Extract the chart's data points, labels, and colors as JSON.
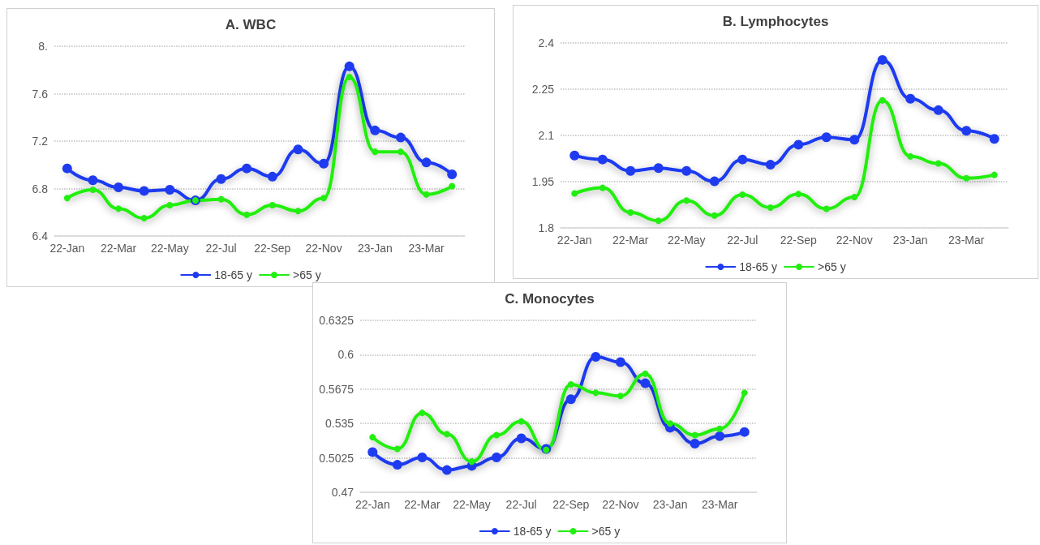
{
  "chart_data": [
    {
      "type": "line",
      "title": "A. WBC",
      "categories": [
        "22-Jan",
        null,
        "22-Mar",
        null,
        "22-May",
        null,
        "22-Jul",
        null,
        "22-Sep",
        null,
        "22-Nov",
        null,
        "23-Jan",
        null,
        "23-Mar",
        null
      ],
      "series": [
        {
          "name": "18-65 y",
          "color": "#1f3bf0",
          "values": [
            6.97,
            6.87,
            6.81,
            6.78,
            6.79,
            6.7,
            6.88,
            6.97,
            6.9,
            7.13,
            7.01,
            7.83,
            7.29,
            7.23,
            7.02,
            6.92
          ]
        },
        {
          "name": ">65 y",
          "color": "#22ee11",
          "values": [
            6.72,
            6.79,
            6.63,
            6.55,
            6.66,
            6.7,
            6.71,
            6.58,
            6.66,
            6.61,
            6.72,
            7.74,
            7.11,
            7.11,
            6.75,
            6.82
          ]
        }
      ],
      "ylim": [
        6.4,
        8
      ],
      "yticks": [
        6.4,
        6.8,
        7.2,
        7.6,
        {
          "value": 8,
          "label": "8."
        }
      ],
      "grid": "y",
      "legend": "bottom",
      "marker": "circle",
      "line_style": "solid"
    },
    {
      "type": "line",
      "title": "B. Lymphocytes",
      "categories": [
        "22-Jan",
        null,
        "22-Mar",
        null,
        "22-May",
        null,
        "22-Jul",
        null,
        "22-Sep",
        null,
        "22-Nov",
        null,
        "23-Jan",
        null,
        "23-Mar",
        null
      ],
      "series": [
        {
          "name": "18-65 y",
          "color": "#1f3bf0",
          "values": [
            2.035,
            2.022,
            1.985,
            1.994,
            1.985,
            1.951,
            2.022,
            2.005,
            2.07,
            2.094,
            2.086,
            2.345,
            2.219,
            2.182,
            2.115,
            2.089
          ]
        },
        {
          "name": ">65 y",
          "color": "#22ee11",
          "values": [
            1.912,
            1.93,
            1.85,
            1.823,
            1.889,
            1.84,
            1.908,
            1.866,
            1.91,
            1.862,
            1.9,
            2.214,
            2.032,
            2.009,
            1.961,
            1.972
          ]
        }
      ],
      "ylim": [
        1.8,
        2.4
      ],
      "yticks": [
        1.8,
        1.95,
        2.1,
        2.25,
        2.4
      ],
      "grid": "y",
      "legend": "bottom",
      "marker": "circle",
      "line_style": "solid"
    },
    {
      "type": "line",
      "title": "C. Monocytes",
      "categories": [
        "22-Jan",
        null,
        "22-Mar",
        null,
        "22-May",
        null,
        "22-Jul",
        null,
        "22-Sep",
        null,
        "22-Nov",
        null,
        "23-Jan",
        null,
        "23-Mar",
        null
      ],
      "series": [
        {
          "name": "18-65 y",
          "color": "#1f3bf0",
          "values": [
            0.508,
            0.496,
            0.503,
            0.491,
            0.495,
            0.503,
            0.521,
            0.511,
            0.558,
            0.598,
            0.593,
            0.573,
            0.531,
            0.516,
            0.523,
            0.527
          ]
        },
        {
          "name": ">65 y",
          "color": "#22ee11",
          "values": [
            0.522,
            0.511,
            0.545,
            0.525,
            0.499,
            0.524,
            0.537,
            0.51,
            0.572,
            0.564,
            0.561,
            0.582,
            0.535,
            0.524,
            0.53,
            0.564
          ]
        }
      ],
      "ylim": [
        0.47,
        0.6325
      ],
      "yticks": [
        0.47,
        0.5025,
        0.535,
        0.5675,
        0.6,
        0.6325
      ],
      "grid": "y",
      "legend": "bottom",
      "marker": "circle",
      "line_style": "solid"
    }
  ]
}
